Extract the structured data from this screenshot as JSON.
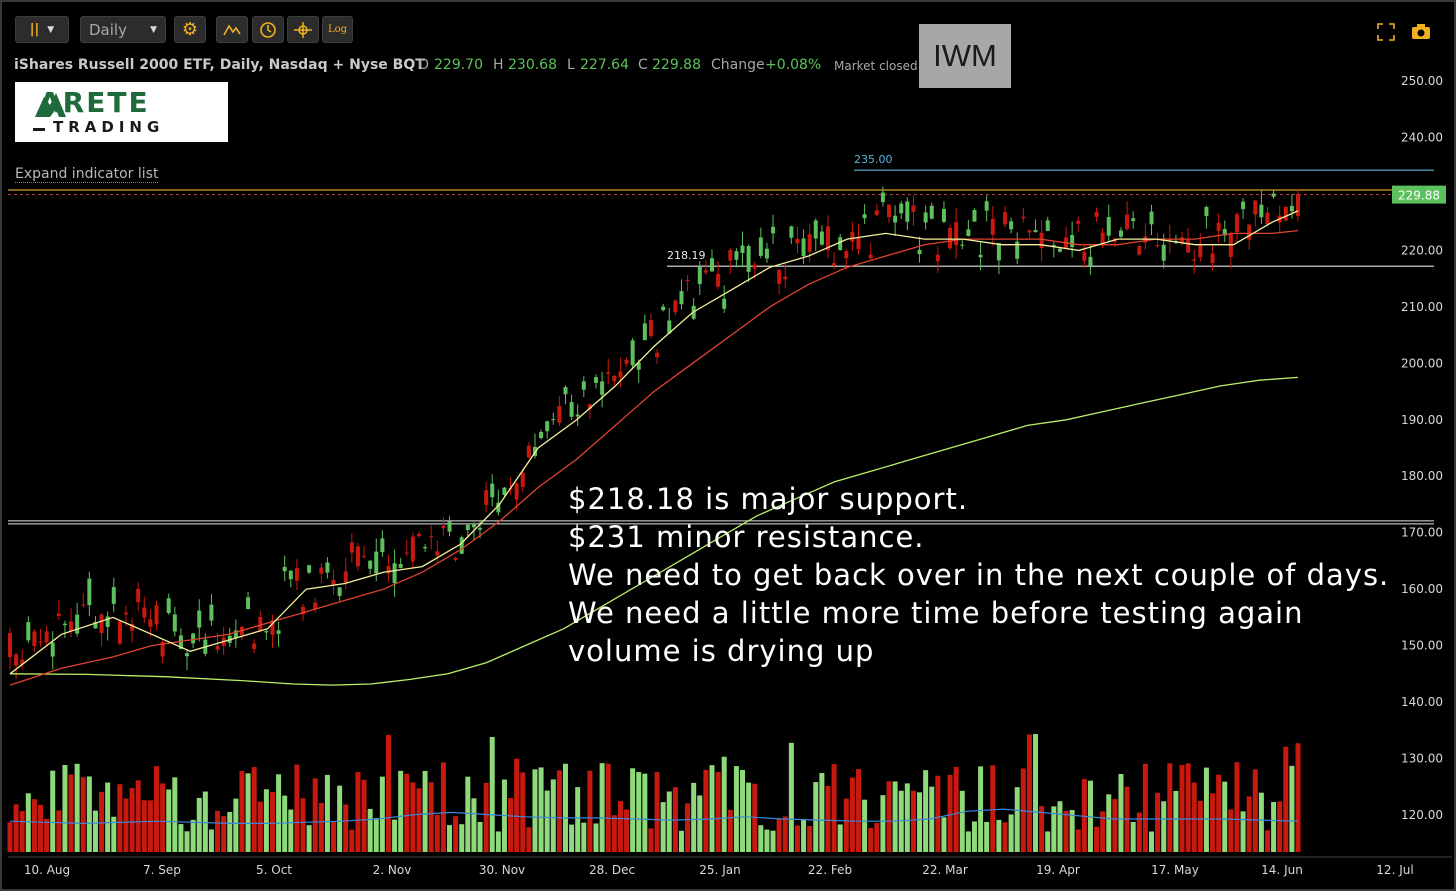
{
  "toolbar": {
    "interval": "Daily",
    "log_label": "Log"
  },
  "header": {
    "title": "iShares Russell 2000 ETF, Daily, Nasdaq + Nyse BQT",
    "open_label": "O",
    "open": "229.70",
    "high_label": "H",
    "high": "230.68",
    "low_label": "L",
    "low": "227.64",
    "close_label": "C",
    "close": "229.88",
    "change_label": "Change",
    "change": "+0.08%",
    "status": "Market closed",
    "symbol": "IWM"
  },
  "logo": {
    "line1": "ARETE",
    "line2": "TRADING"
  },
  "expand_indicator": "Expand indicator list",
  "annotation": [
    "$218.18 is major support.",
    "$231 minor resistance.",
    "We need to get back over in the next couple of days.",
    "We need a little more time before testing again",
    "volume is drying up"
  ],
  "colors": {
    "up": "#5cc15c",
    "down": "#c8190f",
    "ma_fast": "#f4f09a",
    "ma_mid": "#e0432f",
    "ma_slow": "#b9f06a",
    "resistance": "#d8a028",
    "line_235": "#5ab4d8",
    "vol_ma": "#3a86d8"
  },
  "chart_data": {
    "type": "candlestick",
    "y_ticks": [
      250,
      240,
      230,
      220,
      210,
      200,
      190,
      180,
      170,
      160,
      150,
      140,
      130,
      120
    ],
    "y_tick_labels": [
      "250.00",
      "240.00",
      "230.00",
      "220.00",
      "210.00",
      "200.00",
      "190.00",
      "180.00",
      "170.00",
      "160.00",
      "150.00",
      "140.00",
      "130.00",
      "120.00"
    ],
    "x_labels": [
      "10. Aug",
      "7. Sep",
      "5. Oct",
      "2. Nov",
      "30. Nov",
      "28. Dec",
      "25. Jan",
      "22. Feb",
      "22. Mar",
      "19. Apr",
      "17. May",
      "14. Jun",
      "12. Jul"
    ],
    "levels": [
      {
        "label": "235.00",
        "value": 234.2,
        "color": "#5ab4d8",
        "x_start": "15. Feb"
      },
      {
        "label": "218.19",
        "value": 217.2,
        "color": "#e6e6e6",
        "x_start": "15. Jan"
      }
    ],
    "resistance_value": 230.7,
    "support_line_value": 172.1,
    "last_price": 229.88,
    "last_price_label": "229.88",
    "ma_fast": [
      [
        0,
        145
      ],
      [
        20,
        152
      ],
      [
        40,
        155
      ],
      [
        55,
        152
      ],
      [
        70,
        149
      ],
      [
        85,
        151
      ],
      [
        100,
        153
      ],
      [
        115,
        160
      ],
      [
        130,
        161
      ],
      [
        145,
        163
      ],
      [
        160,
        164
      ],
      [
        175,
        168
      ],
      [
        190,
        175
      ],
      [
        205,
        185
      ],
      [
        220,
        190
      ],
      [
        235,
        196
      ],
      [
        250,
        203
      ],
      [
        265,
        209
      ],
      [
        280,
        213
      ],
      [
        295,
        217
      ],
      [
        310,
        219
      ],
      [
        325,
        222
      ],
      [
        340,
        223
      ],
      [
        355,
        222
      ],
      [
        370,
        222
      ],
      [
        385,
        221
      ],
      [
        400,
        221
      ],
      [
        415,
        220
      ],
      [
        430,
        222
      ],
      [
        445,
        222
      ],
      [
        460,
        221
      ],
      [
        475,
        221
      ],
      [
        490,
        225
      ],
      [
        500,
        227
      ]
    ],
    "ma_mid": [
      [
        0,
        143
      ],
      [
        20,
        146
      ],
      [
        40,
        148
      ],
      [
        55,
        150
      ],
      [
        70,
        151
      ],
      [
        85,
        152
      ],
      [
        100,
        154
      ],
      [
        115,
        156
      ],
      [
        130,
        158
      ],
      [
        145,
        160
      ],
      [
        160,
        163
      ],
      [
        175,
        167
      ],
      [
        190,
        172
      ],
      [
        205,
        178
      ],
      [
        220,
        183
      ],
      [
        235,
        189
      ],
      [
        250,
        195
      ],
      [
        265,
        200
      ],
      [
        280,
        205
      ],
      [
        295,
        210
      ],
      [
        310,
        214
      ],
      [
        325,
        217
      ],
      [
        340,
        219
      ],
      [
        355,
        221
      ],
      [
        370,
        222
      ],
      [
        385,
        222
      ],
      [
        400,
        222
      ],
      [
        415,
        221
      ],
      [
        430,
        221
      ],
      [
        445,
        222
      ],
      [
        460,
        222
      ],
      [
        475,
        223
      ],
      [
        490,
        223
      ],
      [
        500,
        223.5
      ]
    ],
    "ma_slow": [
      [
        0,
        145
      ],
      [
        30,
        144.9
      ],
      [
        60,
        144.5
      ],
      [
        90,
        143.8
      ],
      [
        110,
        143.2
      ],
      [
        125,
        143
      ],
      [
        140,
        143.2
      ],
      [
        155,
        144
      ],
      [
        170,
        145
      ],
      [
        185,
        147
      ],
      [
        200,
        150
      ],
      [
        215,
        153
      ],
      [
        230,
        157
      ],
      [
        245,
        161
      ],
      [
        260,
        165
      ],
      [
        275,
        169
      ],
      [
        290,
        173
      ],
      [
        305,
        176
      ],
      [
        320,
        179
      ],
      [
        335,
        181
      ],
      [
        350,
        183
      ],
      [
        365,
        185
      ],
      [
        380,
        187
      ],
      [
        395,
        189
      ],
      [
        410,
        190
      ],
      [
        425,
        191.5
      ],
      [
        440,
        193
      ],
      [
        455,
        194.5
      ],
      [
        470,
        196
      ],
      [
        485,
        197
      ],
      [
        500,
        197.5
      ]
    ],
    "vol_ma_values": [
      0.28,
      0.27,
      0.26,
      0.27,
      0.28,
      0.27,
      0.26,
      0.26,
      0.27,
      0.28,
      0.3,
      0.34,
      0.36,
      0.34,
      0.32,
      0.31,
      0.31,
      0.3,
      0.29,
      0.3,
      0.32,
      0.3,
      0.29,
      0.28,
      0.28,
      0.3,
      0.37,
      0.39,
      0.36,
      0.33,
      0.3,
      0.3,
      0.3,
      0.3,
      0.29,
      0.28
    ],
    "candle_seed": 17
  }
}
